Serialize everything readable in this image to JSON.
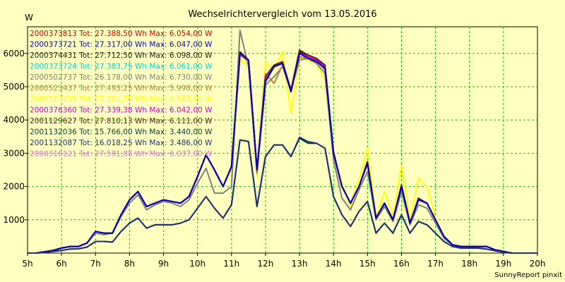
{
  "chart_data": {
    "type": "line",
    "title": "Wechselrichtervergleich vom 13.05.2016",
    "ylabel": "W",
    "credit": "SunnyReport pinxit",
    "xlim": [
      5,
      20
    ],
    "ylim": [
      0,
      6800
    ],
    "x_ticks": [
      5,
      6,
      7,
      8,
      9,
      10,
      11,
      12,
      13,
      14,
      15,
      16,
      17,
      18,
      19,
      20
    ],
    "x_tick_labels": [
      "5h",
      "6h",
      "7h",
      "8h",
      "9h",
      "10h",
      "11h",
      "12h",
      "13h",
      "14h",
      "15h",
      "16h",
      "17h",
      "18h",
      "19h",
      "20h"
    ],
    "y_ticks": [
      1000,
      2000,
      3000,
      4000,
      5000,
      6000
    ],
    "y_tick_labels": [
      "1000",
      "2000",
      "3000",
      "4000",
      "5000",
      "6000"
    ],
    "grid": true,
    "legend_position": "top-left",
    "x": [
      5.0,
      5.25,
      5.5,
      5.75,
      6.0,
      6.25,
      6.5,
      6.75,
      7.0,
      7.25,
      7.5,
      7.75,
      8.0,
      8.25,
      8.5,
      8.75,
      9.0,
      9.25,
      9.5,
      9.75,
      10.0,
      10.25,
      10.5,
      10.75,
      11.0,
      11.25,
      11.5,
      11.75,
      12.0,
      12.25,
      12.5,
      12.75,
      13.0,
      13.25,
      13.5,
      13.75,
      14.0,
      14.25,
      14.5,
      14.75,
      15.0,
      15.25,
      15.5,
      15.75,
      16.0,
      16.25,
      16.5,
      16.75,
      17.0,
      17.25,
      17.5,
      17.75,
      18.0,
      18.25,
      18.5,
      18.75,
      19.0,
      19.25,
      19.5,
      19.75,
      20.0
    ],
    "series": [
      {
        "name": "2000373813 Tot: 27.388,50 Wh Max: 6.054,00 W",
        "color": "#d00000",
        "values": [
          0,
          0,
          40,
          80,
          150,
          200,
          200,
          300,
          650,
          600,
          600,
          1150,
          1600,
          1850,
          1400,
          1500,
          1600,
          1550,
          1500,
          1700,
          2300,
          2950,
          2500,
          2000,
          2600,
          6000,
          5800,
          2500,
          5200,
          5600,
          5700,
          4850,
          6000,
          5900,
          5800,
          5600,
          3000,
          2000,
          1500,
          2000,
          2700,
          1050,
          1500,
          1000,
          2000,
          900,
          1600,
          1500,
          1000,
          500,
          250,
          200,
          200,
          200,
          200,
          100,
          50,
          0,
          0,
          0,
          0
        ]
      },
      {
        "name": "2000373721 Tot: 27.317,00 Wh Max: 6.047,00 W",
        "color": "#0000c0",
        "values": [
          0,
          0,
          40,
          80,
          150,
          200,
          200,
          300,
          650,
          600,
          600,
          1150,
          1600,
          1850,
          1400,
          1500,
          1600,
          1550,
          1500,
          1700,
          2300,
          2950,
          2500,
          2000,
          2600,
          6000,
          5800,
          2500,
          5150,
          5600,
          5700,
          4850,
          6000,
          5850,
          5750,
          5550,
          3000,
          2000,
          1500,
          2000,
          2700,
          1050,
          1500,
          1000,
          2000,
          900,
          1600,
          1500,
          1000,
          500,
          250,
          200,
          200,
          200,
          200,
          100,
          50,
          0,
          0,
          0,
          0
        ]
      },
      {
        "name": "2000374431 Tot: 27.712,50 Wh Max: 6.098,00 W",
        "color": "#202020",
        "values": [
          0,
          0,
          40,
          80,
          150,
          200,
          200,
          300,
          650,
          600,
          600,
          1150,
          1600,
          1850,
          1400,
          1500,
          1600,
          1550,
          1500,
          1700,
          2300,
          2950,
          2500,
          2000,
          2600,
          6000,
          5800,
          2500,
          5200,
          5600,
          5700,
          4850,
          6050,
          5900,
          5800,
          5600,
          3000,
          2000,
          1500,
          2000,
          2700,
          1050,
          1500,
          1000,
          2000,
          900,
          1600,
          1500,
          1000,
          500,
          250,
          200,
          200,
          200,
          200,
          100,
          50,
          0,
          0,
          0,
          0
        ]
      },
      {
        "name": "2000373724 Tot: 27.383,75 Wh Max: 6.061,00 W",
        "color": "#00d0d0",
        "values": [
          0,
          0,
          40,
          80,
          150,
          200,
          200,
          300,
          650,
          600,
          600,
          1150,
          1600,
          1850,
          1400,
          1500,
          1600,
          1550,
          1500,
          1700,
          2300,
          2950,
          2500,
          2000,
          2600,
          6000,
          5800,
          2500,
          5200,
          5600,
          5700,
          4850,
          6000,
          5900,
          5800,
          5600,
          3000,
          2000,
          1500,
          2000,
          2700,
          1050,
          1500,
          1000,
          2000,
          900,
          1600,
          1500,
          1000,
          500,
          250,
          200,
          200,
          200,
          200,
          100,
          50,
          0,
          0,
          0,
          0
        ]
      },
      {
        "name": "2000502737 Tot: 26.178,00 Wh Max: 6.730,00 W",
        "color": "#808080",
        "values": [
          0,
          0,
          40,
          80,
          150,
          200,
          200,
          300,
          600,
          550,
          600,
          1100,
          1500,
          1750,
          1300,
          1450,
          1550,
          1500,
          1400,
          1600,
          2100,
          2550,
          1800,
          1800,
          2000,
          6700,
          5600,
          2400,
          5050,
          5300,
          5600,
          4900,
          5800,
          5850,
          5700,
          5400,
          2800,
          1650,
          1300,
          1900,
          2450,
          1000,
          1400,
          950,
          1850,
          850,
          1450,
          1350,
          900,
          450,
          250,
          200,
          200,
          200,
          200,
          100,
          50,
          0,
          0,
          0,
          0
        ]
      },
      {
        "name": "2000523437 Tot: 27.493,25 Wh Max: 5.998,00 W",
        "color": "#c08040",
        "values": [
          0,
          0,
          40,
          80,
          150,
          200,
          200,
          300,
          650,
          600,
          600,
          1150,
          1600,
          1850,
          1400,
          1500,
          1600,
          1550,
          1500,
          1700,
          2300,
          2950,
          2500,
          2000,
          2600,
          5950,
          5750,
          2500,
          5400,
          5100,
          5650,
          4900,
          5900,
          5850,
          5800,
          5500,
          3000,
          2000,
          1500,
          2000,
          2700,
          1050,
          1500,
          1000,
          2000,
          900,
          1600,
          1500,
          1000,
          500,
          250,
          200,
          200,
          200,
          200,
          100,
          50,
          0,
          0,
          0,
          0
        ]
      },
      {
        "name": "2000523459 Tot: 27.201,75 Wh Max: 6.063,00 W",
        "color": "#ffff00",
        "values": [
          0,
          0,
          40,
          80,
          150,
          200,
          200,
          300,
          650,
          600,
          600,
          1150,
          1600,
          1850,
          1400,
          1500,
          1600,
          1550,
          1500,
          1700,
          2300,
          2950,
          2500,
          2000,
          2500,
          5800,
          5650,
          2300,
          5750,
          5500,
          6050,
          4200,
          5850,
          5800,
          5700,
          5200,
          3000,
          2100,
          1400,
          2200,
          3150,
          1100,
          1850,
          1100,
          2650,
          1000,
          2250,
          2000,
          1050,
          500,
          250,
          200,
          200,
          200,
          200,
          100,
          50,
          0,
          0,
          0,
          0
        ]
      },
      {
        "name": "2000376360 Tot: 27.339,38 Wh Max: 6.042,00 W",
        "color": "#d000d0",
        "values": [
          0,
          0,
          40,
          80,
          150,
          200,
          200,
          300,
          650,
          600,
          600,
          1150,
          1600,
          1850,
          1400,
          1500,
          1600,
          1550,
          1500,
          1700,
          2300,
          2950,
          2500,
          2000,
          2600,
          6000,
          5800,
          2500,
          5200,
          5600,
          5700,
          4850,
          6000,
          5900,
          5800,
          5600,
          3000,
          2000,
          1500,
          2000,
          2700,
          1050,
          1500,
          1000,
          2000,
          900,
          1600,
          1500,
          1000,
          500,
          250,
          200,
          200,
          200,
          200,
          100,
          50,
          0,
          0,
          0,
          0
        ]
      },
      {
        "name": "2001129627 Tot: 27.810,13 Wh Max: 6.111,00 W",
        "color": "#602020",
        "values": [
          0,
          0,
          40,
          80,
          150,
          200,
          200,
          300,
          650,
          600,
          600,
          1150,
          1600,
          1850,
          1400,
          1500,
          1600,
          1550,
          1500,
          1700,
          2300,
          2950,
          2500,
          2000,
          2600,
          6050,
          5800,
          2500,
          5300,
          5650,
          5750,
          4900,
          6100,
          5950,
          5850,
          5650,
          3050,
          2000,
          1500,
          2000,
          2750,
          1050,
          1500,
          1000,
          2050,
          900,
          1650,
          1500,
          1000,
          500,
          250,
          200,
          200,
          200,
          200,
          100,
          50,
          0,
          0,
          0,
          0
        ]
      },
      {
        "name": "2001132036 Tot: 15.766,00 Wh Max: 3.440,00 W",
        "color": "#004040",
        "values": [
          0,
          0,
          20,
          50,
          80,
          120,
          130,
          180,
          350,
          350,
          330,
          650,
          900,
          1050,
          750,
          850,
          850,
          850,
          900,
          1000,
          1350,
          1700,
          1350,
          1050,
          1450,
          3400,
          3350,
          1400,
          2900,
          3250,
          3250,
          2900,
          3450,
          3300,
          3300,
          3150,
          1700,
          1150,
          800,
          1250,
          1550,
          600,
          900,
          600,
          1150,
          600,
          950,
          850,
          600,
          350,
          200,
          150,
          150,
          150,
          120,
          70,
          30,
          0,
          0,
          0,
          0
        ]
      },
      {
        "name": "2001132087 Tot: 16.018,25 Wh Max: 3.486,00 W",
        "color": "#203070",
        "values": [
          0,
          0,
          20,
          50,
          80,
          120,
          130,
          180,
          350,
          350,
          330,
          650,
          900,
          1050,
          750,
          850,
          850,
          850,
          900,
          1000,
          1350,
          1700,
          1350,
          1050,
          1450,
          3400,
          3350,
          1400,
          2900,
          3250,
          3250,
          2900,
          3480,
          3350,
          3300,
          3150,
          1700,
          1150,
          800,
          1250,
          1550,
          600,
          900,
          600,
          1150,
          600,
          950,
          850,
          600,
          350,
          200,
          150,
          150,
          150,
          120,
          70,
          30,
          0,
          0,
          0,
          0
        ]
      },
      {
        "name": "2000316121 Tot: 27.591,88 Wh Max: 6.037,00 W",
        "color": "#e070e0",
        "values": [
          0,
          0,
          40,
          80,
          150,
          200,
          200,
          300,
          650,
          600,
          600,
          1150,
          1600,
          1850,
          1400,
          1500,
          1600,
          1550,
          1500,
          1700,
          2300,
          2950,
          2500,
          2000,
          2600,
          6000,
          5800,
          2500,
          5200,
          5600,
          5700,
          4850,
          6000,
          5900,
          5800,
          5600,
          3000,
          2000,
          1500,
          2000,
          2700,
          1050,
          1500,
          1000,
          2000,
          900,
          1600,
          1500,
          1000,
          500,
          250,
          200,
          200,
          200,
          200,
          100,
          50,
          0,
          0,
          0,
          0
        ]
      }
    ]
  }
}
